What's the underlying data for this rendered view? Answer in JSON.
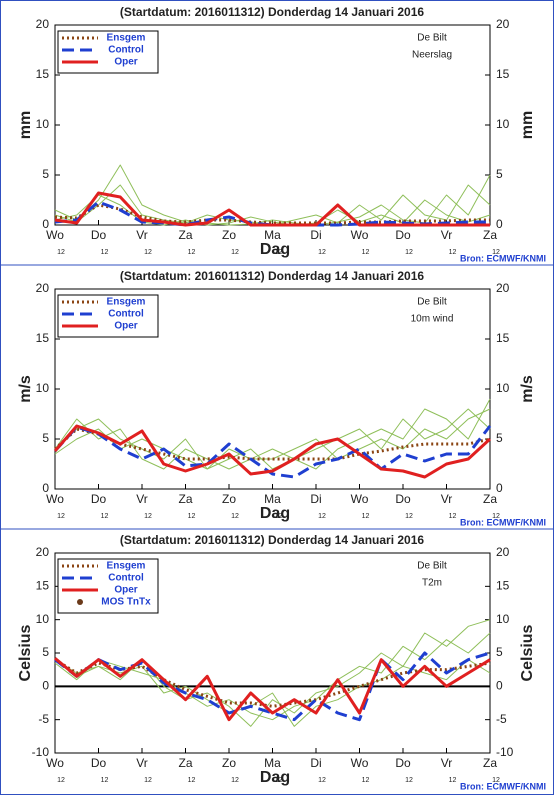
{
  "chart_data": [
    {
      "type": "line",
      "title": "(Startdatum: 2016011312)   Donderdag 14 Januari   2016",
      "annotations": [
        "De Bilt",
        "Neerslag"
      ],
      "ylabel": "mm",
      "xlabel": "Dag",
      "source": "Bron: ECMWF/KNMI",
      "x": [
        0,
        0.5,
        1,
        1.5,
        2,
        2.5,
        3,
        3.5,
        4,
        4.5,
        5,
        5.5,
        6,
        6.5,
        7,
        7.5,
        8,
        8.5,
        9,
        9.5,
        10
      ],
      "xticks": [
        {
          "value": 0,
          "label": "Wo"
        },
        {
          "value": 1,
          "label": "Do"
        },
        {
          "value": 2,
          "label": "Vr"
        },
        {
          "value": 3,
          "label": "Za"
        },
        {
          "value": 4,
          "label": "Zo"
        },
        {
          "value": 5,
          "label": "Ma"
        },
        {
          "value": 6,
          "label": "Di"
        },
        {
          "value": 7,
          "label": "Wo"
        },
        {
          "value": 8,
          "label": "Do"
        },
        {
          "value": 9,
          "label": "Vr"
        },
        {
          "value": 10,
          "label": "Za"
        }
      ],
      "hour_ticks": [
        {
          "value": 0,
          "label": "12"
        },
        {
          "value": 1,
          "label": "12"
        },
        {
          "value": 2,
          "label": "12"
        },
        {
          "value": 3,
          "label": "12"
        },
        {
          "value": 4,
          "label": "12"
        },
        {
          "value": 5,
          "label": "12"
        },
        {
          "value": 6,
          "label": "12"
        },
        {
          "value": 7,
          "label": "12"
        },
        {
          "value": 8,
          "label": "12"
        },
        {
          "value": 9,
          "label": "12"
        },
        {
          "value": 10,
          "label": "12"
        }
      ],
      "ylim": [
        0,
        20
      ],
      "yticks": [
        0,
        5,
        10,
        15,
        20
      ],
      "zero_line": false,
      "series": [
        {
          "color": "#8fbf5a",
          "dash": "solid",
          "width": 1,
          "values": [
            1,
            0.3,
            2,
            4,
            1,
            0.5,
            0.2,
            1,
            0.5,
            0.3,
            0,
            0.5,
            1,
            0.2,
            2,
            0.5,
            3,
            1,
            0.5,
            4,
            2
          ]
        },
        {
          "color": "#8fbf5a",
          "dash": "solid",
          "width": 1,
          "values": [
            0.5,
            1,
            3,
            2,
            0.3,
            0,
            0.5,
            0,
            0.2,
            0.8,
            0.3,
            0,
            0.2,
            1.5,
            0.3,
            1,
            0.2,
            2.5,
            1,
            0.3,
            1
          ]
        },
        {
          "color": "#8fbf5a",
          "dash": "solid",
          "width": 1,
          "values": [
            1.5,
            0.5,
            2.5,
            6,
            2,
            1,
            0.3,
            0.2,
            0,
            0.1,
            0.5,
            0.2,
            0,
            0.3,
            0.8,
            2,
            0.5,
            0.2,
            3,
            1,
            5
          ]
        },
        {
          "name": "Ensgem",
          "color": "#8b4513",
          "dash": "dotted",
          "width": 3,
          "values": [
            0.8,
            0.7,
            2,
            1.6,
            0.8,
            0.4,
            0.3,
            0.5,
            0.5,
            0.3,
            0.2,
            0.2,
            0.2,
            0.2,
            0.3,
            0.3,
            0.4,
            0.4,
            0.4,
            0.5,
            0.5
          ]
        },
        {
          "name": "Control",
          "color": "#1f3fd0",
          "dash": "dashed",
          "width": 3,
          "values": [
            0.3,
            0.5,
            2.3,
            1.5,
            0.3,
            0.2,
            0,
            0.5,
            0.8,
            0.2,
            0,
            0,
            0,
            0,
            0.1,
            0.3,
            0.2,
            0.1,
            0.2,
            0.3,
            0.3
          ]
        },
        {
          "name": "Oper",
          "color": "#e02020",
          "dash": "solid",
          "width": 3,
          "values": [
            0.5,
            0.2,
            3.2,
            2.8,
            0.5,
            0.3,
            0,
            0.2,
            1.5,
            0,
            0,
            0,
            0,
            2,
            0,
            0,
            0,
            0,
            0,
            0,
            0
          ]
        }
      ]
    },
    {
      "type": "line",
      "title": "(Startdatum: 2016011312)   Donderdag 14 Januari   2016",
      "annotations": [
        "De Bilt",
        "10m wind"
      ],
      "ylabel": "m/s",
      "xlabel": "Dag",
      "source": "Bron: ECMWF/KNMI",
      "x": [
        0,
        0.5,
        1,
        1.5,
        2,
        2.5,
        3,
        3.5,
        4,
        4.5,
        5,
        5.5,
        6,
        6.5,
        7,
        7.5,
        8,
        8.5,
        9,
        9.5,
        10
      ],
      "xticks": [
        {
          "value": 0,
          "label": "Wo"
        },
        {
          "value": 1,
          "label": "Do"
        },
        {
          "value": 2,
          "label": "Vr"
        },
        {
          "value": 3,
          "label": "Za"
        },
        {
          "value": 4,
          "label": "Zo"
        },
        {
          "value": 5,
          "label": "Ma"
        },
        {
          "value": 6,
          "label": "Di"
        },
        {
          "value": 7,
          "label": "Wo"
        },
        {
          "value": 8,
          "label": "Do"
        },
        {
          "value": 9,
          "label": "Vr"
        },
        {
          "value": 10,
          "label": "Za"
        }
      ],
      "hour_ticks": [
        {
          "value": 0,
          "label": "12"
        },
        {
          "value": 1,
          "label": "12"
        },
        {
          "value": 2,
          "label": "12"
        },
        {
          "value": 3,
          "label": "12"
        },
        {
          "value": 4,
          "label": "12"
        },
        {
          "value": 5,
          "label": "12"
        },
        {
          "value": 6,
          "label": "12"
        },
        {
          "value": 7,
          "label": "12"
        },
        {
          "value": 8,
          "label": "12"
        },
        {
          "value": 9,
          "label": "12"
        },
        {
          "value": 10,
          "label": "12"
        }
      ],
      "ylim": [
        0,
        20
      ],
      "yticks": [
        0,
        5,
        10,
        15,
        20
      ],
      "zero_line": false,
      "series": [
        {
          "color": "#8fbf5a",
          "dash": "solid",
          "width": 1,
          "values": [
            4,
            6,
            7,
            5,
            4,
            3,
            5,
            2,
            3,
            4,
            2,
            3,
            4,
            5,
            6,
            4,
            7,
            5,
            6,
            8,
            6
          ]
        },
        {
          "color": "#8fbf5a",
          "dash": "solid",
          "width": 1,
          "values": [
            3.5,
            5,
            6,
            4,
            5,
            4,
            3,
            2,
            4,
            3,
            4,
            3,
            2,
            4,
            5,
            6,
            5,
            8,
            7,
            5,
            9
          ]
        },
        {
          "color": "#8fbf5a",
          "dash": "solid",
          "width": 1,
          "values": [
            4,
            7,
            5,
            6,
            3,
            2,
            4,
            3,
            2,
            3,
            3,
            4,
            5,
            3,
            4,
            5,
            4,
            6,
            5,
            7,
            8
          ]
        },
        {
          "name": "Ensgem",
          "color": "#8b4513",
          "dash": "dotted",
          "width": 3,
          "values": [
            4,
            6,
            5.5,
            4.5,
            4,
            3.5,
            3,
            3,
            3.2,
            3,
            3,
            3,
            3,
            3,
            3.5,
            3.8,
            4.2,
            4.5,
            4.5,
            4.5,
            5
          ]
        },
        {
          "name": "Control",
          "color": "#1f3fd0",
          "dash": "dashed",
          "width": 3,
          "values": [
            3.8,
            6.2,
            5.5,
            4,
            3,
            4,
            2.3,
            2.5,
            4.5,
            3,
            1.5,
            1.2,
            2.5,
            3,
            4,
            2,
            3.5,
            2.8,
            3.5,
            3.5,
            6.3
          ]
        },
        {
          "name": "Oper",
          "color": "#e02020",
          "dash": "solid",
          "width": 3,
          "values": [
            3.8,
            6.3,
            5.6,
            4.5,
            5.8,
            2.5,
            1.8,
            2.5,
            3.5,
            1.5,
            1.8,
            3,
            4.5,
            5,
            3.5,
            2,
            1.8,
            1.2,
            2.5,
            3,
            5
          ]
        }
      ]
    },
    {
      "type": "line",
      "title": "(Startdatum: 2016011312)   Donderdag 14 Januari   2016",
      "annotations": [
        "De Bilt",
        "T2m"
      ],
      "ylabel": "Celsius",
      "xlabel": "Dag",
      "source": "Bron: ECMWF/KNMI",
      "x": [
        0,
        0.5,
        1,
        1.5,
        2,
        2.5,
        3,
        3.5,
        4,
        4.5,
        5,
        5.5,
        6,
        6.5,
        7,
        7.5,
        8,
        8.5,
        9,
        9.5,
        10
      ],
      "xticks": [
        {
          "value": 0,
          "label": "Wo"
        },
        {
          "value": 1,
          "label": "Do"
        },
        {
          "value": 2,
          "label": "Vr"
        },
        {
          "value": 3,
          "label": "Za"
        },
        {
          "value": 4,
          "label": "Zo"
        },
        {
          "value": 5,
          "label": "Ma"
        },
        {
          "value": 6,
          "label": "Di"
        },
        {
          "value": 7,
          "label": "Wo"
        },
        {
          "value": 8,
          "label": "Do"
        },
        {
          "value": 9,
          "label": "Vr"
        },
        {
          "value": 10,
          "label": "Za"
        }
      ],
      "hour_ticks": [
        {
          "value": 0,
          "label": "12"
        },
        {
          "value": 1,
          "label": "12"
        },
        {
          "value": 2,
          "label": "12"
        },
        {
          "value": 3,
          "label": "12"
        },
        {
          "value": 4,
          "label": "12"
        },
        {
          "value": 5,
          "label": "12"
        },
        {
          "value": 6,
          "label": "12"
        },
        {
          "value": 7,
          "label": "12"
        },
        {
          "value": 8,
          "label": "12"
        },
        {
          "value": 9,
          "label": "12"
        },
        {
          "value": 10,
          "label": "12"
        }
      ],
      "ylim": [
        -10,
        20
      ],
      "yticks": [
        -10,
        -5,
        0,
        5,
        10,
        15,
        20
      ],
      "zero_line": true,
      "series": [
        {
          "color": "#8fbf5a",
          "dash": "solid",
          "width": 1,
          "values": [
            4,
            2,
            3,
            1,
            4,
            0,
            -2,
            -1,
            -3,
            -6,
            -2,
            -4,
            -1,
            0,
            2,
            5,
            3,
            8,
            6,
            9,
            10
          ]
        },
        {
          "color": "#8fbf5a",
          "dash": "solid",
          "width": 1,
          "values": [
            3.5,
            1,
            4,
            3,
            2,
            1,
            -1,
            -3,
            -2,
            -4,
            -5,
            -3,
            -2,
            1,
            3,
            2,
            6,
            4,
            7,
            5,
            8
          ]
        },
        {
          "color": "#8fbf5a",
          "dash": "solid",
          "width": 1,
          "values": [
            4,
            1.5,
            3,
            2,
            3,
            -1,
            0,
            -2,
            -4,
            -3,
            -1,
            -6,
            -3,
            -2,
            0,
            1,
            3,
            2,
            1,
            4,
            2
          ]
        },
        {
          "name": "Ensgem",
          "color": "#8b4513",
          "dash": "dotted",
          "width": 3,
          "values": [
            4,
            2,
            3.5,
            2.5,
            3,
            1,
            -0.5,
            -1.5,
            -2.5,
            -2.5,
            -3,
            -2.5,
            -2,
            -1,
            0,
            1,
            2,
            2.5,
            2.5,
            3,
            3.5
          ]
        },
        {
          "name": "Control",
          "color": "#1f3fd0",
          "dash": "dashed",
          "width": 3,
          "values": [
            4,
            1.5,
            4,
            2.5,
            3.5,
            0.5,
            -1,
            -2,
            -4,
            -3,
            -4,
            -5,
            -2,
            -4,
            -5,
            4,
            1,
            5,
            2,
            4,
            5
          ]
        },
        {
          "name": "Oper",
          "color": "#e02020",
          "dash": "solid",
          "width": 3,
          "values": [
            4.2,
            1.5,
            4,
            1.5,
            4,
            1,
            -2,
            1.5,
            -5,
            -1,
            -4,
            -2,
            -4,
            1,
            -4,
            4,
            0,
            3,
            0,
            2,
            4
          ]
        },
        {
          "name": "MOS TnTx",
          "color": "#6b3a1a",
          "marker": "dot",
          "values": [
            null,
            null,
            null,
            null,
            null,
            null,
            null,
            null,
            null,
            null,
            null,
            null,
            null,
            null,
            null,
            null,
            null,
            null,
            null,
            null,
            null
          ]
        }
      ]
    }
  ]
}
